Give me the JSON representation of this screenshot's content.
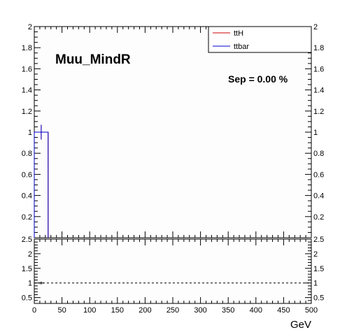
{
  "chart_data": [
    {
      "type": "histogram",
      "title": "Muu_MindR",
      "annotation": "Sep = 0.00 %",
      "xlabel": "",
      "ylabel": "",
      "xlim": [
        0,
        500
      ],
      "ylim": [
        0,
        2
      ],
      "x_ticks": [
        0,
        50,
        100,
        150,
        200,
        250,
        300,
        350,
        400,
        450,
        500
      ],
      "y_ticks": [
        0.2,
        0.4,
        0.6,
        0.8,
        1,
        1.2,
        1.4,
        1.6,
        1.8,
        2
      ],
      "y_tick_labels": [
        "0.2",
        "0.4",
        "0.6",
        "0.8",
        "1",
        "1.2",
        "1.4",
        "1.6",
        "1.8",
        "2"
      ],
      "legend": {
        "placement": "top-right",
        "entries": [
          {
            "name": "ttH",
            "color": "#cc0000"
          },
          {
            "name": "ttbar",
            "color": "#0000cc"
          }
        ]
      },
      "series": [
        {
          "name": "ttH",
          "color": "#cc0000",
          "bins": [
            {
              "x0": 0,
              "x1": 25,
              "y": 1.0,
              "err": 0.07
            }
          ]
        },
        {
          "name": "ttbar",
          "color": "#0000cc",
          "bins": [
            {
              "x0": 0,
              "x1": 25,
              "y": 1.0,
              "err": 0.07
            }
          ]
        }
      ]
    },
    {
      "type": "ratio",
      "xlabel": "GeV",
      "xlim": [
        0,
        500
      ],
      "ylim": [
        0.3,
        2.5
      ],
      "x_ticks": [
        0,
        50,
        100,
        150,
        200,
        250,
        300,
        350,
        400,
        450,
        500
      ],
      "x_tick_labels": [
        "0",
        "50",
        "100",
        "150",
        "200",
        "250",
        "300",
        "350",
        "400",
        "450",
        "500"
      ],
      "y_ticks": [
        0.5,
        1,
        1.5,
        2,
        2.5
      ],
      "y_tick_labels": [
        "0.5",
        "1",
        "1.5",
        "2",
        "2.5"
      ],
      "reference_line": 1,
      "points": [
        {
          "x": 12.5,
          "y": 1.0,
          "err": 0.05
        }
      ]
    }
  ]
}
